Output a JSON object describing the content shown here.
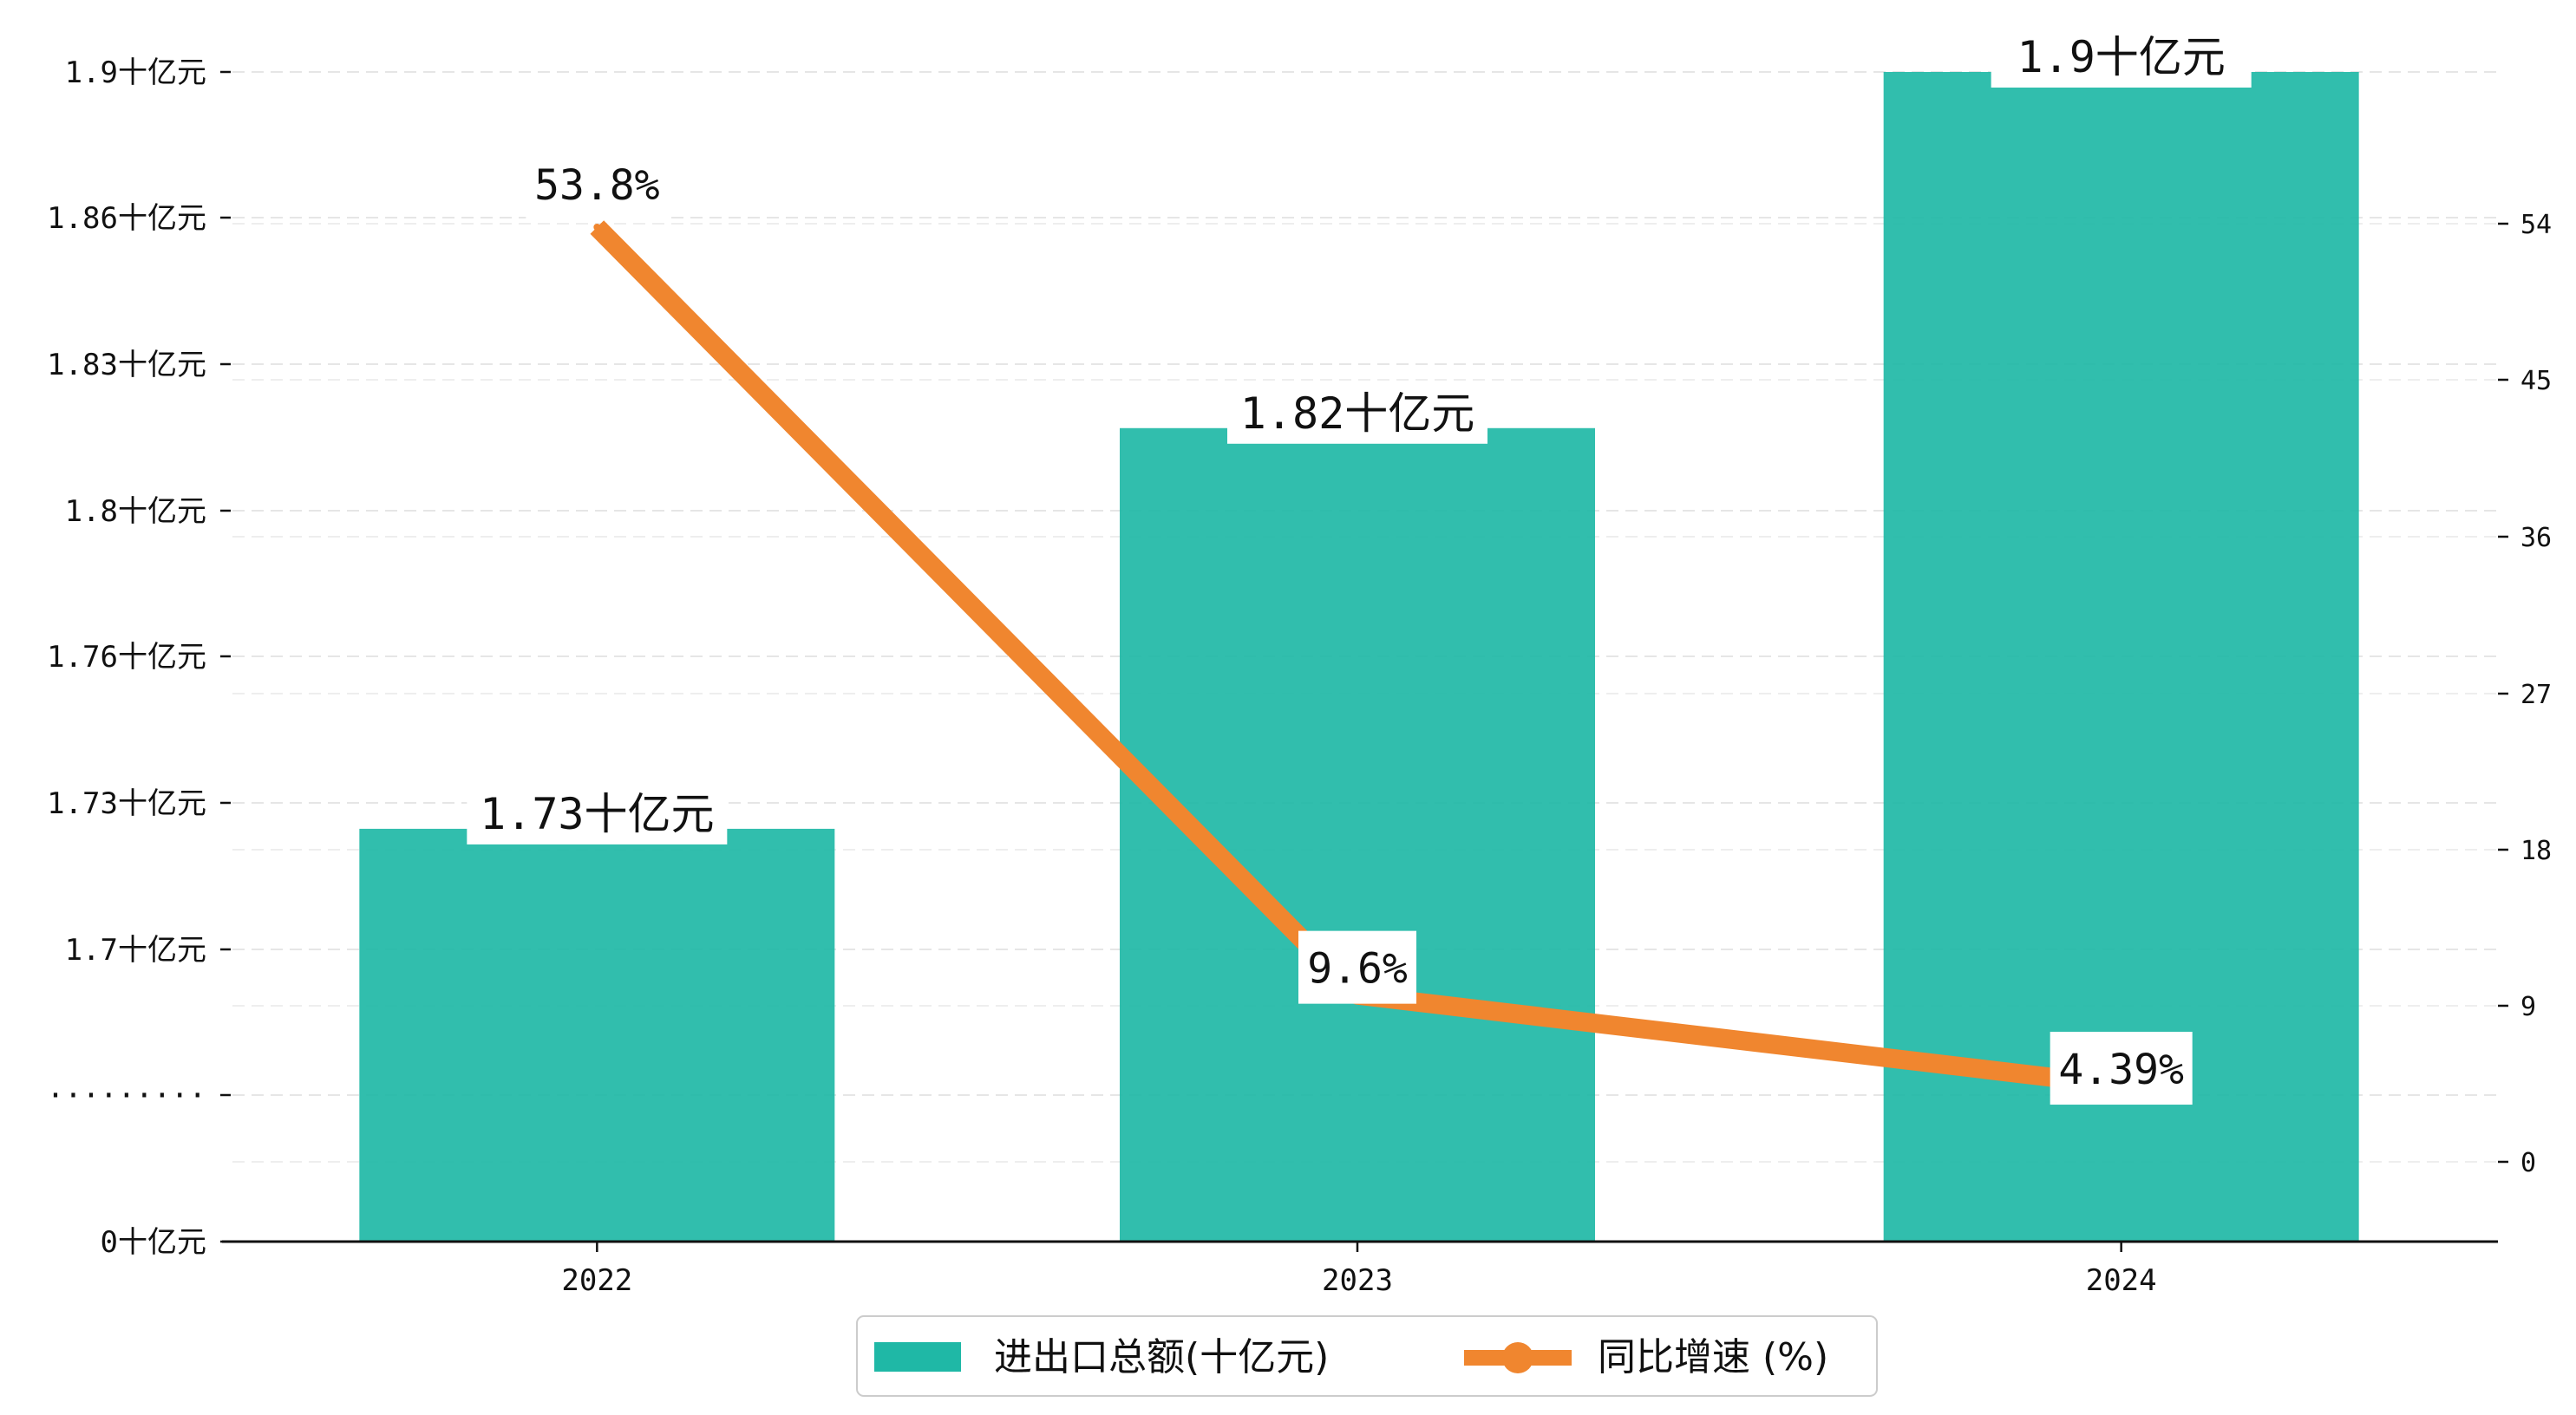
{
  "chart_data": {
    "type": "bar+line",
    "categories": [
      "2022",
      "2023",
      "2024"
    ],
    "series": [
      {
        "name": "进出口总额(十亿元)",
        "type": "bar",
        "axis": "left",
        "values": [
          1.73,
          1.82,
          1.9
        ],
        "labels": [
          "1.73十亿元",
          "1.82十亿元",
          "1.9十亿元"
        ],
        "color": "#1fb8a6"
      },
      {
        "name": "同比增速 (%)",
        "type": "line",
        "axis": "right",
        "values": [
          53.8,
          9.6,
          4.39
        ],
        "labels": [
          "53.8%",
          "9.6%",
          "4.39%"
        ],
        "color": "#f0862f"
      }
    ],
    "left_axis": {
      "ticks": [
        "0十亿元",
        "·········",
        "1.7十亿元",
        "1.73十亿元",
        "1.76十亿元",
        "1.8十亿元",
        "1.83十亿元",
        "1.86十亿元",
        "1.9十亿元"
      ],
      "broken": true,
      "ylim": [
        1.67,
        1.9
      ]
    },
    "right_axis": {
      "ticks": [
        "0",
        "9",
        "18",
        "27",
        "36",
        "45",
        "54"
      ],
      "ylim": [
        -4.7,
        65.1
      ]
    },
    "grid": "horizontal dashed",
    "legend_position": "bottom-center"
  }
}
